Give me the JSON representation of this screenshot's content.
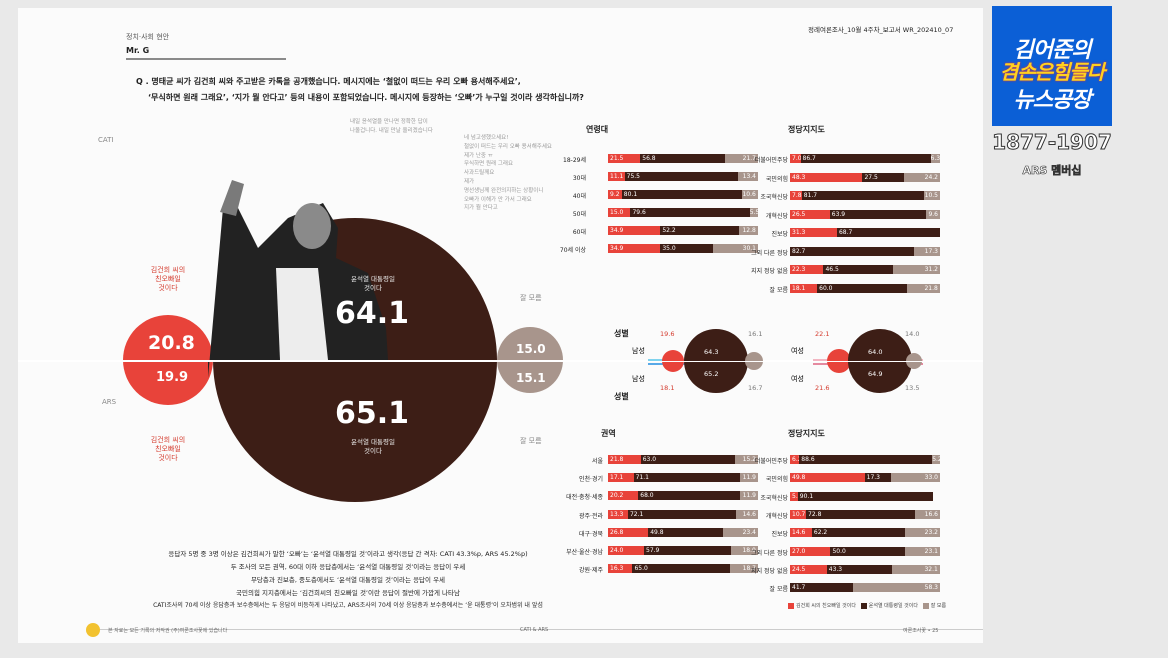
{
  "header": {
    "section": "정치·사회 현안",
    "author": "Mr. G",
    "doc_id": "정례여론조사_10월 4주차_보고서   WR_202410_07",
    "q_line1": "Q . 명태균 씨가 김건희 씨와 주고받은 카톡을 공개했습니다. 메시지에는 ‘철없이 떠드는 우리 오빠 용서해주세요’,",
    "q_line2": "‘무식하면 원래 그래요’, ‘지가 뭘 안다고’ 등의 내용이 포함되었습니다. 메시지에 등장하는 ‘오빠’가 누구일 것이라 생각하십니까?"
  },
  "bubble": {
    "cati_label": "CATI",
    "ars_label": "ARS",
    "brother_top_note": "김건희 씨의\n친오빠일\n것이다",
    "brother_bottom_note": "김건희 씨의\n친오빠일\n것이다",
    "president_top_note": "윤석열 대통령일\n것이다",
    "president_bottom_note": "윤석열 대통령일\n것이다",
    "unknown_top": "잘 모름",
    "unknown_bottom": "잘 모름",
    "faint_note": "내일 윤석열을 만나면 정확한 답이\n나올겁니다. 내일 만날 올리겠습니다",
    "faint_msgs": "네 넘고생했으세요!\n철없이 떠드는 우리 오빠 용서해주세요\n제가 난중 ㅠ\n무식하면 원래 그래요\n사과드릴께요\n제가\n명선생님께 완전의지하는 상황이니\n오빠가 이해가 안 가서 그래요\n지가 뭘 안다고"
  },
  "chart_data": [
    {
      "type": "pie",
      "title": "",
      "note": "CATI vs ARS bubble comparison",
      "series": [
        {
          "name": "CATI",
          "values": [
            20.8,
            64.1,
            15.0
          ]
        },
        {
          "name": "ARS",
          "values": [
            19.9,
            65.1,
            15.1
          ]
        }
      ],
      "categories": [
        "김건희 씨의 친오빠일 것이다",
        "윤석열 대통령일 것이다",
        "잘 모름"
      ]
    },
    {
      "type": "bar",
      "title": "연령대",
      "stacked": true,
      "categories": [
        "18-29세",
        "30대",
        "40대",
        "50대",
        "60대",
        "70세 이상"
      ],
      "series": [
        {
          "name": "brother",
          "values": [
            21.5,
            11.1,
            9.2,
            15.0,
            34.9,
            34.9
          ]
        },
        {
          "name": "president",
          "values": [
            56.8,
            75.5,
            80.1,
            79.6,
            52.2,
            35.0
          ]
        },
        {
          "name": "unknown",
          "values": [
            21.7,
            13.4,
            10.6,
            5.5,
            12.8,
            30.1
          ]
        }
      ]
    },
    {
      "type": "bar",
      "title": "정당지지도",
      "stacked": true,
      "categories": [
        "더불어민주당",
        "국민의힘",
        "조국혁신당",
        "개혁신당",
        "진보당",
        "그외 다른 정당",
        "지지 정당 없음",
        "잘 모름"
      ],
      "series": [
        {
          "name": "brother",
          "values": [
            7.0,
            48.3,
            7.8,
            26.5,
            31.3,
            0,
            22.3,
            18.1
          ]
        },
        {
          "name": "president",
          "values": [
            86.7,
            27.5,
            81.7,
            63.9,
            68.7,
            82.7,
            46.5,
            60.0
          ]
        },
        {
          "name": "unknown",
          "values": [
            6.3,
            24.2,
            10.5,
            9.6,
            0,
            17.3,
            31.2,
            21.8
          ]
        }
      ]
    },
    {
      "type": "bar",
      "title": "권역",
      "stacked": true,
      "categories": [
        "서울",
        "인천·경기",
        "대전·충청·세종",
        "광주·전라",
        "대구·경북",
        "부산·울산·경남",
        "강원·제주"
      ],
      "series": [
        {
          "name": "brother",
          "values": [
            21.8,
            17.1,
            20.2,
            13.3,
            26.8,
            24.0,
            16.3
          ]
        },
        {
          "name": "president",
          "values": [
            63.0,
            71.1,
            68.0,
            72.1,
            49.8,
            57.9,
            65.0
          ]
        },
        {
          "name": "unknown",
          "values": [
            15.2,
            11.9,
            11.9,
            14.6,
            23.4,
            18.0,
            18.7
          ]
        }
      ]
    },
    {
      "type": "bar",
      "title": "정당지지도",
      "stacked": true,
      "categories": [
        "더불어민주당",
        "국민의힘",
        "조국혁신당",
        "개혁신당",
        "진보당",
        "그외 다른 정당",
        "지지 정당 없음",
        "잘 모름"
      ],
      "series": [
        {
          "name": "brother",
          "values": [
            6.2,
            49.8,
            5.2,
            10.7,
            14.6,
            27.0,
            24.5,
            0
          ]
        },
        {
          "name": "president",
          "values": [
            88.6,
            17.3,
            90.1,
            72.8,
            62.2,
            50.0,
            43.3,
            41.7
          ]
        },
        {
          "name": "unknown",
          "values": [
            5.2,
            33.0,
            0,
            16.6,
            23.2,
            23.1,
            32.1,
            58.3
          ]
        }
      ]
    },
    {
      "type": "pie",
      "title": "성별",
      "categories": [
        "남성",
        "여성"
      ],
      "series": [
        {
          "name": "CATI",
          "values": [
            [
              19.6,
              64.3,
              16.1
            ],
            [
              22.1,
              64.0,
              14.0
            ]
          ]
        },
        {
          "name": "ARS",
          "values": [
            [
              18.1,
              65.2,
              16.7
            ],
            [
              21.6,
              64.9,
              13.5
            ]
          ]
        }
      ]
    }
  ],
  "bubble_values": {
    "cati_brother": "20.8",
    "ars_brother": "19.9",
    "cati_pres": "64.1",
    "ars_pres": "65.1",
    "cati_unk": "15.0",
    "ars_unk": "15.1"
  },
  "gender": {
    "title_top": "성별",
    "title_bottom": "성별",
    "male": "남성",
    "female": "여성",
    "m_cati": [
      "19.6",
      "64.3",
      "16.1"
    ],
    "m_ars": [
      "18.1",
      "65.2",
      "16.7"
    ],
    "f_cati": [
      "22.1",
      "64.0",
      "14.0"
    ],
    "f_ars": [
      "21.6",
      "64.9",
      "13.5"
    ]
  },
  "legend": {
    "brother": "김건희 씨의 친오빠일 것이다",
    "president": "윤석열 대통령일 것이다",
    "unknown": "잘 모름"
  },
  "footer": {
    "lines": [
      "응답자 5명 중 3명 이상은 김건희씨가 말한 ‘오빠’는 ‘윤석열 대통령일 것’이라고 생각(응답 간 격차: CATI 43.3%p, ARS 45.2%p)",
      "두 조사의 모든 권역, 60대 이하 응답층에서는 ‘윤석열 대통령일 것’이라는 응답이 우세",
      "무당층과 진보층, 중도층에서도 ‘윤석열 대통령일 것’이라는 응답이 우세",
      "국민의힘 지지층에서는 ‘김건희씨의 친오빠일 것’이란 응답이 절반에 가깝게 나타남",
      "CATI조사의 70세 이상 응답층과 보수층에서는 두 응답이 비등하게 나타났고, ARS조사의 70세 이상 응답층과 보수층에서는 ‘윤 대통령’이 오차범위 내 앞섬"
    ],
    "left_small": "본 자료는 모든 기록의 저작권 (주)여론조사꽃에 있습니다",
    "center": "CATI & ARS",
    "right": "여론조사꽃  •  25"
  },
  "logo": {
    "line1": "김어준의",
    "line2": "겸손은힘들다",
    "line3": "뉴스공장",
    "phone": "1877-1907",
    "ars": "ARS 멤버십"
  },
  "colors": {
    "red": "#e8433a",
    "brown": "#3d1e16",
    "gray": "#a8958c",
    "logo_blue": "#0b5fd6"
  }
}
